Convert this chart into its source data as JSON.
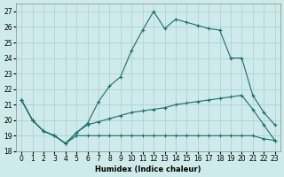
{
  "xlabel": "Humidex (Indice chaleur)",
  "xlim": [
    -0.5,
    23.5
  ],
  "ylim": [
    18,
    27.5
  ],
  "yticks": [
    18,
    19,
    20,
    21,
    22,
    23,
    24,
    25,
    26,
    27
  ],
  "xticks": [
    0,
    1,
    2,
    3,
    4,
    5,
    6,
    7,
    8,
    9,
    10,
    11,
    12,
    13,
    14,
    15,
    16,
    17,
    18,
    19,
    20,
    21,
    22,
    23
  ],
  "bg_color": "#ceeaea",
  "grid_color": "#aed4d4",
  "line_color": "#1a6e6e",
  "line1_x": [
    0,
    1,
    2,
    3,
    4,
    5,
    6,
    7,
    8,
    9,
    10,
    11,
    12,
    13,
    14,
    15,
    16,
    17,
    18,
    19,
    20,
    21,
    22,
    23
  ],
  "line1_y": [
    21.3,
    20.0,
    19.3,
    19.0,
    18.5,
    19.0,
    19.0,
    19.0,
    19.0,
    19.0,
    19.0,
    19.0,
    19.0,
    19.0,
    19.0,
    19.0,
    19.0,
    19.0,
    19.0,
    19.0,
    19.0,
    19.0,
    18.8,
    18.7
  ],
  "line2_x": [
    0,
    1,
    2,
    3,
    4,
    5,
    6,
    7,
    8,
    9,
    10,
    11,
    12,
    13,
    14,
    15,
    16,
    17,
    18,
    19,
    20,
    21,
    22,
    23
  ],
  "line2_y": [
    21.3,
    20.0,
    19.3,
    19.0,
    18.5,
    19.2,
    19.7,
    19.9,
    20.1,
    20.3,
    20.5,
    20.6,
    20.7,
    20.8,
    21.0,
    21.1,
    21.2,
    21.3,
    21.4,
    21.5,
    21.6,
    20.7,
    19.7,
    18.7
  ],
  "line3_x": [
    0,
    1,
    2,
    3,
    4,
    5,
    6,
    7,
    8,
    9,
    10,
    11,
    12,
    13,
    14,
    15,
    16,
    17,
    18,
    19,
    20,
    21,
    22,
    23
  ],
  "line3_y": [
    21.3,
    20.0,
    19.3,
    19.0,
    18.5,
    19.2,
    19.8,
    21.2,
    22.2,
    22.8,
    24.5,
    25.8,
    27.0,
    25.9,
    26.5,
    26.3,
    26.1,
    25.9,
    25.8,
    24.0,
    24.0,
    21.6,
    20.5,
    19.7
  ]
}
